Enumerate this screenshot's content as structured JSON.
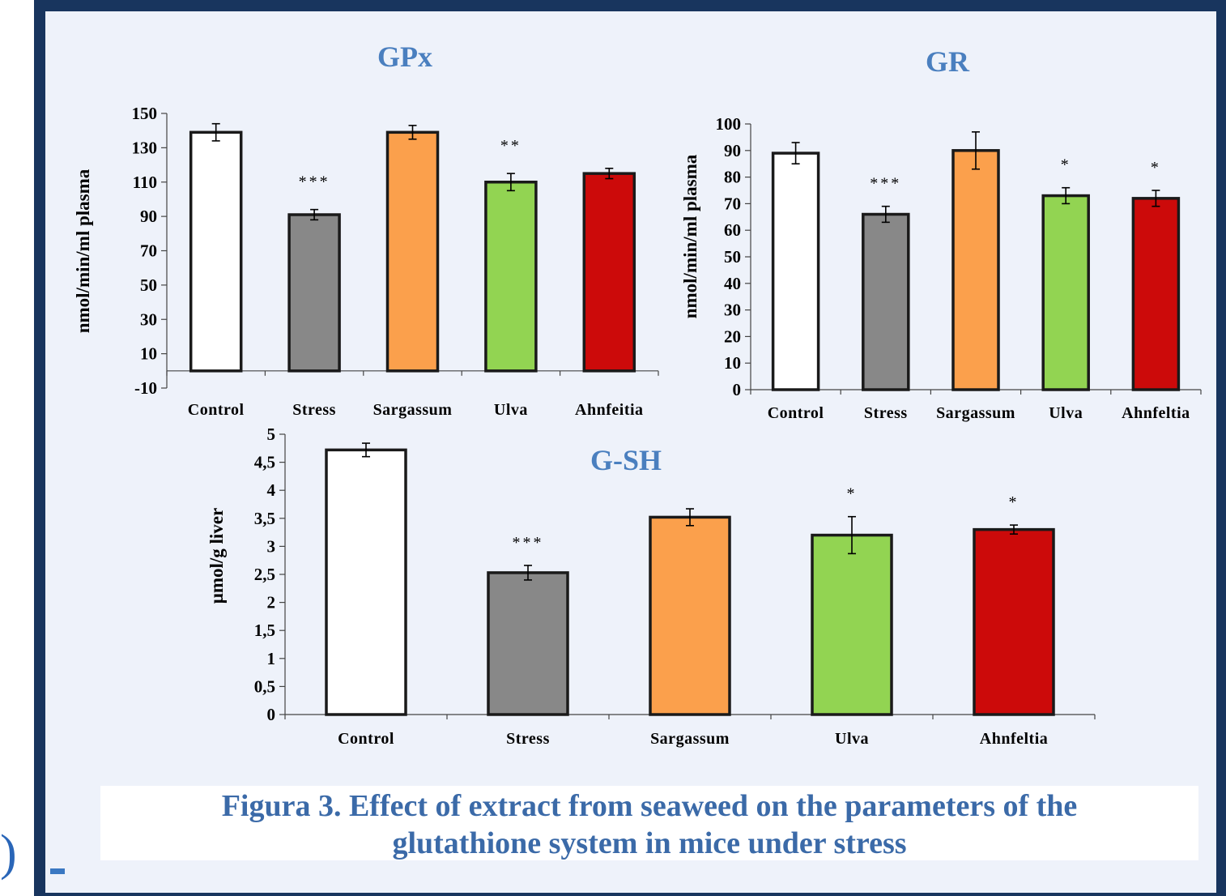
{
  "colors": {
    "frame": "#18355e",
    "panel": "#eef2fa",
    "title": "#4a7fbf",
    "caption": "#3b6aa8",
    "bars": [
      "#ffffff",
      "#888888",
      "#fba04c",
      "#92d452",
      "#cc0a0a"
    ]
  },
  "caption": {
    "line1": "Figura 3. Effect of extract from seaweed on the parameters of the",
    "line2": "glutathione system in mice under stress"
  },
  "chart_data": [
    {
      "type": "bar",
      "title": "GPx",
      "ylabel": "nmol/min/ml plasma",
      "xlabel": "",
      "categories": [
        "Control",
        "Stress",
        "Sargassum",
        "Ulva",
        "Ahnfeitia"
      ],
      "values": [
        139,
        91,
        139,
        110,
        115
      ],
      "errors": [
        5,
        3,
        4,
        5,
        3
      ],
      "significance": [
        "",
        "***",
        "",
        "**",
        ""
      ],
      "ylim": [
        -10,
        150
      ],
      "yticks": [
        -10,
        10,
        30,
        50,
        70,
        90,
        110,
        130,
        150
      ],
      "ytick_labels": [
        "-10",
        "10",
        "30",
        "50",
        "70",
        "90",
        "110",
        "130",
        "150"
      ],
      "grid": false
    },
    {
      "type": "bar",
      "title": "GR",
      "ylabel": "nmol/min/ml plasma",
      "xlabel": "",
      "categories": [
        "Control",
        "Stress",
        "Sargassum",
        "Ulva",
        "Ahnfeltia"
      ],
      "values": [
        89,
        66,
        90,
        73,
        72
      ],
      "errors": [
        4,
        3,
        7,
        3,
        3
      ],
      "significance": [
        "",
        "***",
        "",
        "*",
        "*"
      ],
      "ylim": [
        0,
        100
      ],
      "yticks": [
        0,
        10,
        20,
        30,
        40,
        50,
        60,
        70,
        80,
        90,
        100
      ],
      "ytick_labels": [
        "0",
        "10",
        "20",
        "30",
        "40",
        "50",
        "60",
        "70",
        "80",
        "90",
        "100"
      ],
      "grid": false
    },
    {
      "type": "bar",
      "title": "G-SH",
      "ylabel": "μmol/g liver",
      "xlabel": "",
      "categories": [
        "Control",
        "Stress",
        "Sargassum",
        "Ulva",
        "Ahnfeltia"
      ],
      "values": [
        4.72,
        2.53,
        3.52,
        3.2,
        3.3
      ],
      "errors": [
        0.12,
        0.13,
        0.15,
        0.33,
        0.08
      ],
      "significance": [
        "",
        "***",
        "",
        "*",
        "*"
      ],
      "ylim": [
        0,
        5
      ],
      "yticks": [
        0,
        0.5,
        1,
        1.5,
        2,
        2.5,
        3,
        3.5,
        4,
        4.5,
        5
      ],
      "ytick_labels": [
        "0",
        "0,5",
        "1",
        "1,5",
        "2",
        "2,5",
        "3",
        "3,5",
        "4",
        "4,5",
        "5"
      ],
      "grid": false
    }
  ]
}
